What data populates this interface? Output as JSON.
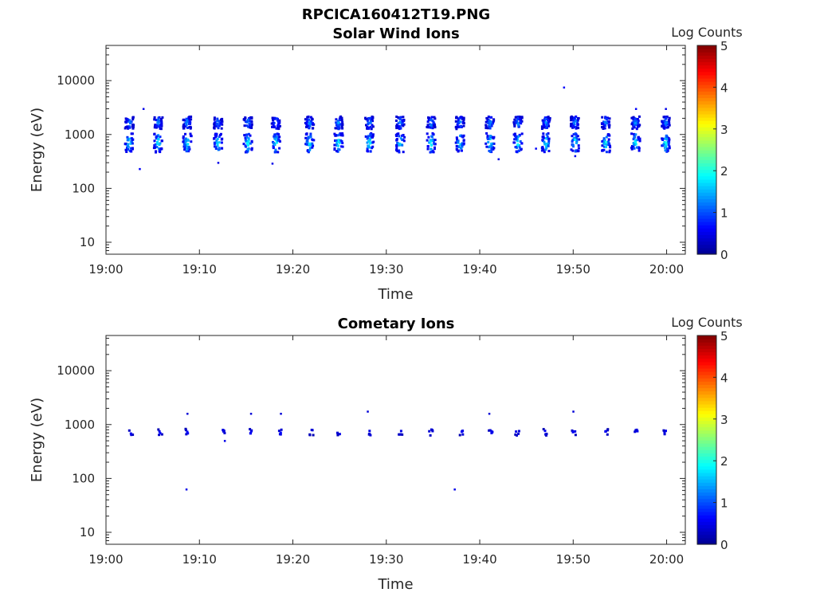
{
  "figure_title": "RPCICA160412T19.PNG",
  "colors": {
    "colormap": [
      "#00008f",
      "#0000ff",
      "#0080ff",
      "#00ffff",
      "#80ff80",
      "#ffff00",
      "#ff8000",
      "#ff0000",
      "#800000"
    ],
    "axes": "#262626"
  },
  "chart_data": [
    {
      "type": "heatmap",
      "title": "Solar Wind Ions",
      "xlabel": "Time",
      "ylabel": "Energy (eV)",
      "y_scale": "log",
      "xlim": [
        "19:00",
        "20:02"
      ],
      "ylim": [
        6,
        45000
      ],
      "x_ticks": [
        "19:00",
        "19:10",
        "19:20",
        "19:30",
        "19:40",
        "19:50",
        "20:00"
      ],
      "y_ticks": [
        "10",
        "100",
        "1000",
        "10000"
      ],
      "colorbar": {
        "title": "Log Counts",
        "range": [
          0,
          5
        ],
        "ticks": [
          "0",
          "1",
          "2",
          "3",
          "4",
          "5"
        ]
      },
      "sweep_times": [
        2.5,
        5.6,
        8.7,
        12.0,
        15.2,
        18.2,
        21.8,
        24.9,
        28.2,
        31.5,
        34.8,
        37.9,
        41.1,
        44.1,
        47.1,
        50.2,
        53.5,
        56.7,
        59.9
      ],
      "clusters": [
        {
          "energy": 1650,
          "energy_spread": 1.3,
          "peak_log_counts": 1.5
        },
        {
          "energy": 700,
          "energy_spread": 1.5,
          "peak_log_counts": 2.1
        }
      ],
      "isolated_points": [
        {
          "t": 3.6,
          "energy": 230,
          "log_counts": 0.6
        },
        {
          "t": 4.0,
          "energy": 3000,
          "log_counts": 0.5
        },
        {
          "t": 12.0,
          "energy": 300,
          "log_counts": 0.5
        },
        {
          "t": 17.8,
          "energy": 290,
          "log_counts": 0.5
        },
        {
          "t": 17.8,
          "energy": 1400,
          "log_counts": 0.6
        },
        {
          "t": 49.0,
          "energy": 7500,
          "log_counts": 0.6
        },
        {
          "t": 42.0,
          "energy": 350,
          "log_counts": 0.5
        },
        {
          "t": 46.0,
          "energy": 550,
          "log_counts": 0.6
        },
        {
          "t": 50.2,
          "energy": 400,
          "log_counts": 0.5
        },
        {
          "t": 56.7,
          "energy": 3000,
          "log_counts": 0.6
        },
        {
          "t": 59.9,
          "energy": 3000,
          "log_counts": 0.5
        }
      ]
    },
    {
      "type": "heatmap",
      "title": "Cometary Ions",
      "xlabel": "Time",
      "ylabel": "Energy (eV)",
      "y_scale": "log",
      "xlim": [
        "19:00",
        "20:02"
      ],
      "ylim": [
        6,
        45000
      ],
      "x_ticks": [
        "19:00",
        "19:10",
        "19:20",
        "19:30",
        "19:40",
        "19:50",
        "20:00"
      ],
      "y_ticks": [
        "10",
        "100",
        "1000",
        "10000"
      ],
      "colorbar": {
        "title": "Log Counts",
        "range": [
          0,
          5
        ],
        "ticks": [
          "0",
          "1",
          "2",
          "3",
          "4",
          "5"
        ]
      },
      "sweep_times": [
        2.7,
        5.8,
        8.7,
        12.5,
        15.5,
        18.7,
        22.0,
        25.0,
        28.3,
        31.5,
        34.8,
        38.1,
        41.2,
        44.0,
        47.0,
        50.1,
        53.5,
        56.8,
        59.9
      ],
      "clusters": [
        {
          "energy": 720,
          "energy_spread": 1.15,
          "peak_log_counts": 0.7
        }
      ],
      "isolated_points": [
        {
          "t": 8.7,
          "energy": 1600,
          "log_counts": 0.4
        },
        {
          "t": 15.5,
          "energy": 1600,
          "log_counts": 0.4
        },
        {
          "t": 18.7,
          "energy": 1600,
          "log_counts": 0.4
        },
        {
          "t": 28.0,
          "energy": 1750,
          "log_counts": 0.4
        },
        {
          "t": 41.0,
          "energy": 1600,
          "log_counts": 0.4
        },
        {
          "t": 50.0,
          "energy": 1750,
          "log_counts": 0.4
        },
        {
          "t": 8.6,
          "energy": 63,
          "log_counts": 0.5
        },
        {
          "t": 37.3,
          "energy": 63,
          "log_counts": 0.5
        },
        {
          "t": 12.7,
          "energy": 500,
          "log_counts": 0.5
        }
      ]
    }
  ]
}
